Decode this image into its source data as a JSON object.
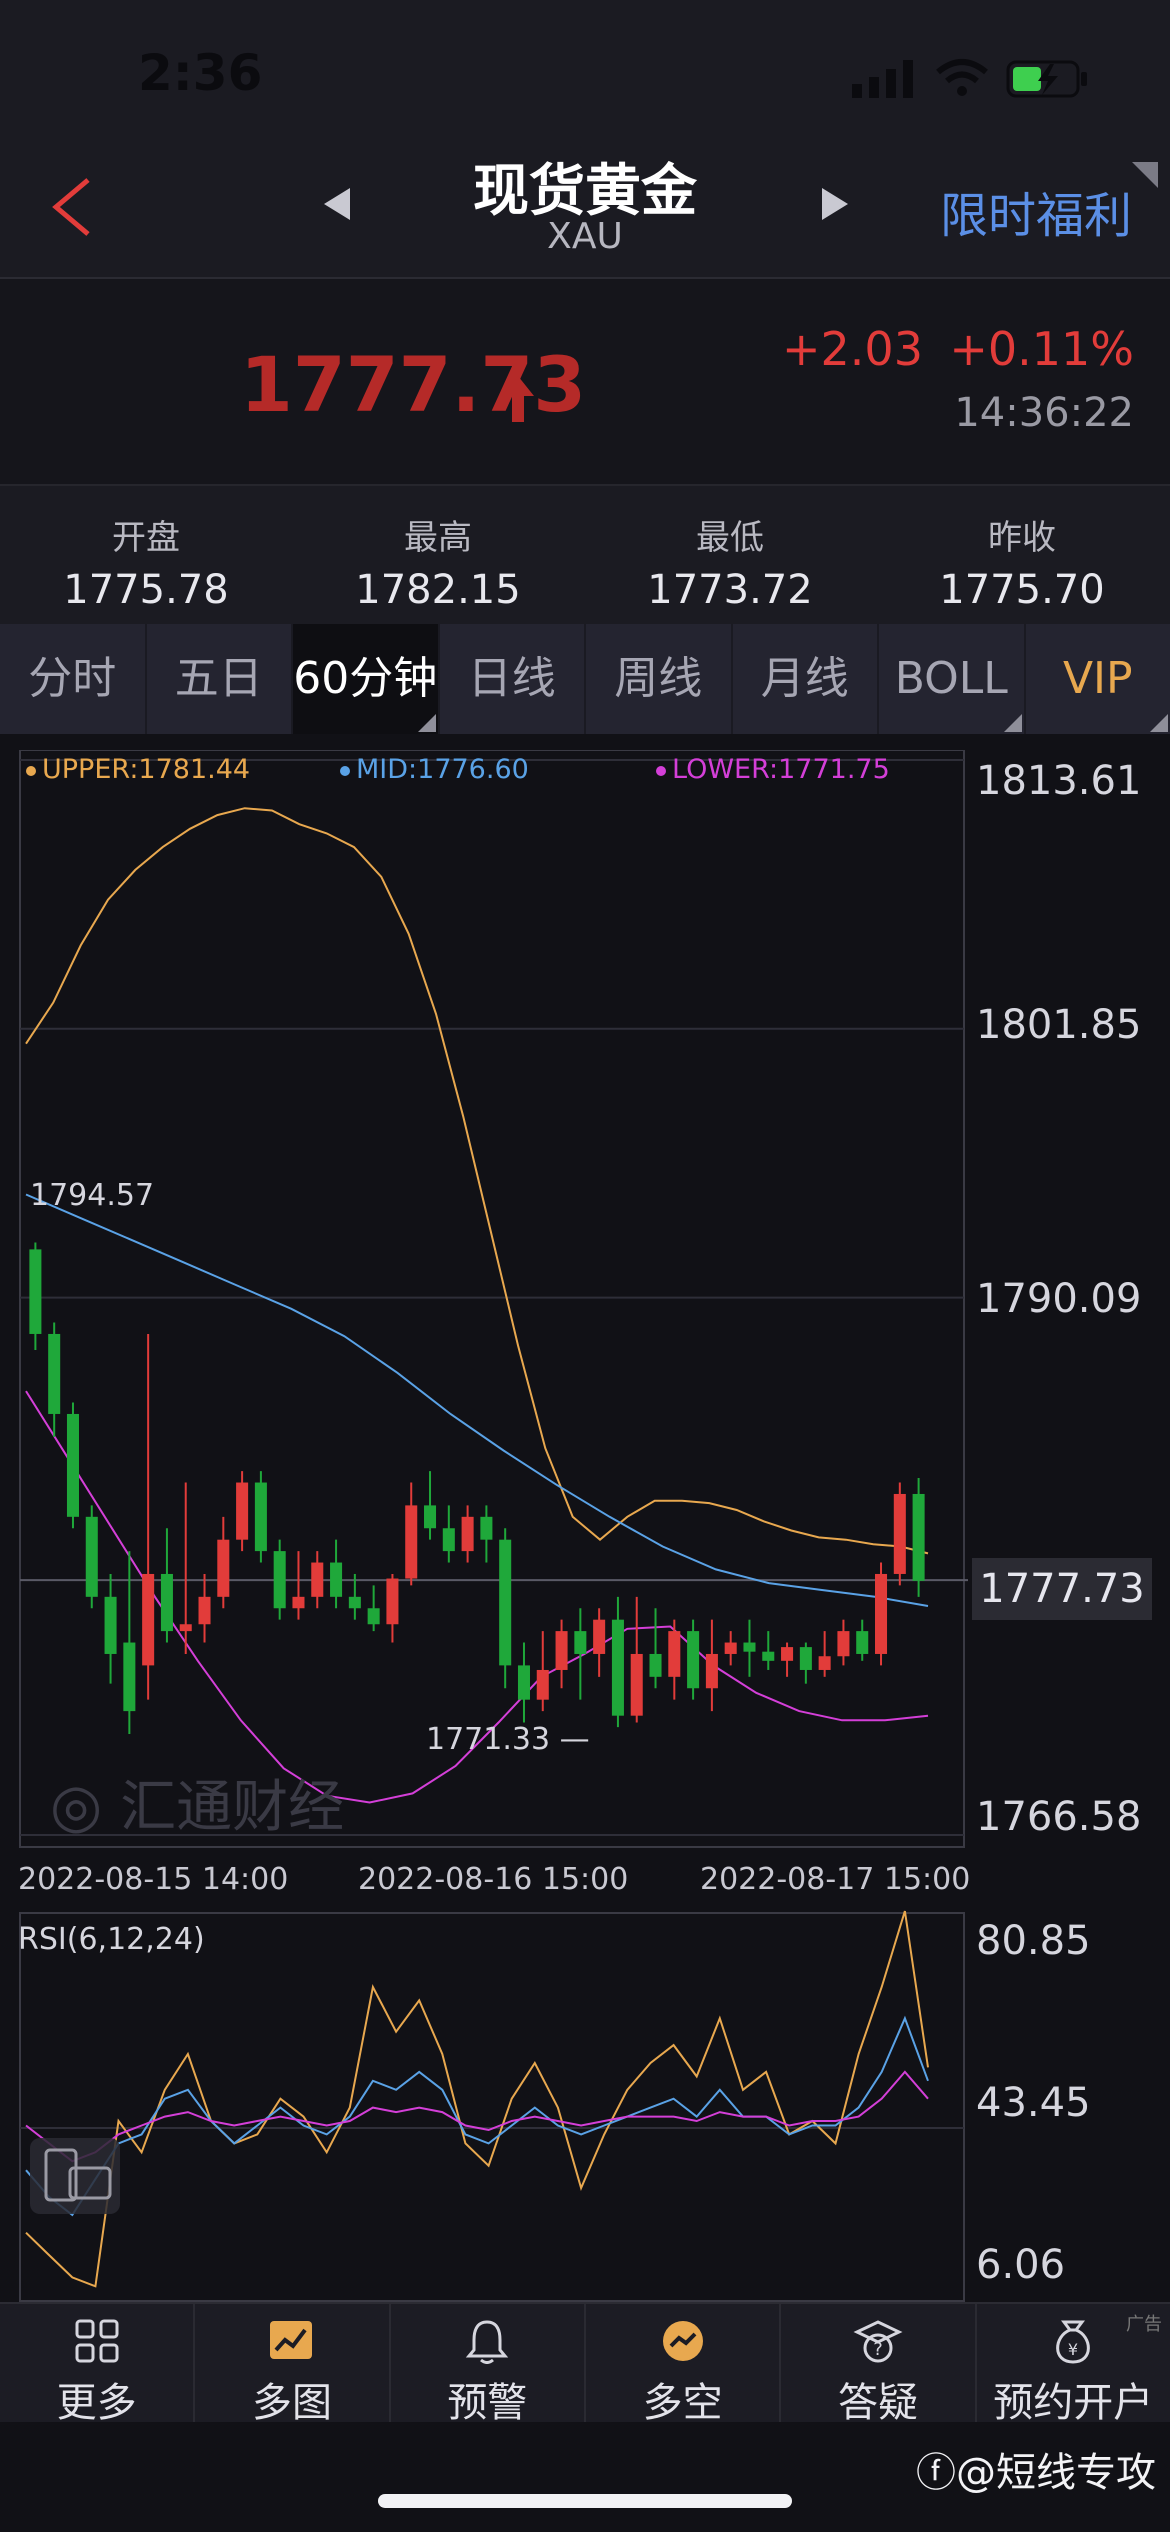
{
  "status": {
    "time": "2:36"
  },
  "header": {
    "back_icon": "back-arrow-icon",
    "title": "现货黄金",
    "subtitle": "XAU",
    "promo": "限时福利"
  },
  "quote": {
    "price": "1777.73",
    "change": "+2.03",
    "change_pct": "+0.11%",
    "time": "14:36:22",
    "up_color": "#e23c3a"
  },
  "stats": [
    {
      "label": "开盘",
      "value": "1775.78"
    },
    {
      "label": "最高",
      "value": "1782.15"
    },
    {
      "label": "最低",
      "value": "1773.72"
    },
    {
      "label": "昨收",
      "value": "1775.70"
    }
  ],
  "tabs": [
    "分时",
    "五日",
    "60分钟",
    "日线",
    "周线",
    "月线",
    "BOLL",
    "VIP"
  ],
  "active_tab": "60分钟",
  "chart_data": {
    "type": "candlestick",
    "legend": {
      "upper": "UPPER:1781.44",
      "mid": "MID:1776.60",
      "lower": "LOWER:1771.75"
    },
    "y_ticks": [
      "1813.61",
      "1801.85",
      "1790.09",
      "1766.58"
    ],
    "ylim": [
      1766.58,
      1813.61
    ],
    "current_price": "1777.73",
    "x_labels": [
      "2022-08-15 14:00",
      "2022-08-16 15:00",
      "2022-08-17 15:00"
    ],
    "annotations": {
      "high": "1794.57",
      "low": "1771.33"
    },
    "colors": {
      "up": "#e23c3a",
      "down": "#1fa83a",
      "upper": "#e8a84f",
      "mid": "#5aa2e6",
      "lower": "#d43fd8"
    },
    "candles": [
      [
        1792.2,
        1788.5,
        1792.5,
        1787.8
      ],
      [
        1788.5,
        1785.0,
        1789.0,
        1784.0
      ],
      [
        1785.0,
        1780.5,
        1785.5,
        1780.0
      ],
      [
        1780.5,
        1777.0,
        1781.0,
        1776.5
      ],
      [
        1777.0,
        1774.5,
        1778.0,
        1773.2
      ],
      [
        1775.0,
        1772.0,
        1779.0,
        1771.0
      ],
      [
        1774.0,
        1778.0,
        1788.5,
        1772.5
      ],
      [
        1778.0,
        1775.5,
        1780.0,
        1775.0
      ],
      [
        1775.5,
        1775.8,
        1782.0,
        1774.5
      ],
      [
        1775.8,
        1777.0,
        1778.0,
        1775.0
      ],
      [
        1777.0,
        1779.5,
        1780.5,
        1776.5
      ],
      [
        1779.5,
        1782.0,
        1782.5,
        1779.0
      ],
      [
        1782.0,
        1779.0,
        1782.5,
        1778.5
      ],
      [
        1779.0,
        1776.5,
        1779.5,
        1776.0
      ],
      [
        1776.5,
        1777.0,
        1779.0,
        1776.0
      ],
      [
        1777.0,
        1778.5,
        1779.0,
        1776.5
      ],
      [
        1778.5,
        1777.0,
        1779.5,
        1776.5
      ],
      [
        1777.0,
        1776.5,
        1778.0,
        1776.0
      ],
      [
        1776.5,
        1775.8,
        1777.5,
        1775.5
      ],
      [
        1775.8,
        1777.8,
        1778.0,
        1775.0
      ],
      [
        1777.8,
        1781.0,
        1782.0,
        1777.5
      ],
      [
        1781.0,
        1780.0,
        1782.5,
        1779.5
      ],
      [
        1780.0,
        1779.0,
        1781.0,
        1778.5
      ],
      [
        1779.0,
        1780.5,
        1781.0,
        1778.5
      ],
      [
        1780.5,
        1779.5,
        1781.0,
        1778.5
      ],
      [
        1779.5,
        1774.0,
        1780.0,
        1773.0
      ],
      [
        1774.0,
        1772.5,
        1775.0,
        1771.5
      ],
      [
        1772.5,
        1773.8,
        1775.5,
        1772.0
      ],
      [
        1773.8,
        1775.5,
        1776.0,
        1773.0
      ],
      [
        1775.5,
        1774.5,
        1776.5,
        1772.5
      ],
      [
        1774.5,
        1776.0,
        1776.5,
        1773.5
      ],
      [
        1776.0,
        1771.8,
        1777.0,
        1771.3
      ],
      [
        1771.8,
        1774.5,
        1777.0,
        1771.5
      ],
      [
        1774.5,
        1773.5,
        1776.5,
        1773.0
      ],
      [
        1773.5,
        1775.5,
        1776.0,
        1772.5
      ],
      [
        1775.5,
        1773.0,
        1776.0,
        1772.5
      ],
      [
        1773.0,
        1774.5,
        1776.0,
        1772.0
      ],
      [
        1774.5,
        1775.0,
        1775.5,
        1774.0
      ],
      [
        1775.0,
        1774.6,
        1776.0,
        1773.5
      ],
      [
        1774.6,
        1774.2,
        1775.5,
        1773.8
      ],
      [
        1774.2,
        1774.8,
        1775.0,
        1773.5
      ],
      [
        1774.8,
        1773.8,
        1775.0,
        1773.2
      ],
      [
        1773.8,
        1774.4,
        1775.5,
        1773.5
      ],
      [
        1774.4,
        1775.5,
        1776.0,
        1774.0
      ],
      [
        1775.5,
        1774.5,
        1776.0,
        1774.2
      ],
      [
        1774.5,
        1778.0,
        1778.5,
        1774.0
      ],
      [
        1778.0,
        1781.5,
        1782.0,
        1777.5
      ],
      [
        1781.5,
        1777.7,
        1782.2,
        1777.0
      ]
    ],
    "upper_band": [
      1801.2,
      1803.0,
      1805.5,
      1807.5,
      1808.8,
      1809.8,
      1810.6,
      1811.2,
      1811.5,
      1811.4,
      1810.8,
      1810.4,
      1809.8,
      1808.5,
      1806.0,
      1802.5,
      1798.0,
      1793.0,
      1788.0,
      1783.5,
      1780.5,
      1779.5,
      1780.5,
      1781.2,
      1781.2,
      1781.1,
      1780.8,
      1780.3,
      1779.9,
      1779.6,
      1779.5,
      1779.3,
      1779.2,
      1778.9
    ],
    "mid_band": [
      1794.6,
      1793.6,
      1792.6,
      1791.6,
      1790.6,
      1789.6,
      1788.4,
      1786.8,
      1785.0,
      1783.4,
      1781.9,
      1780.5,
      1779.2,
      1778.2,
      1777.6,
      1777.3,
      1777.0,
      1776.6
    ],
    "lower_band": [
      1786.0,
      1783.0,
      1780.0,
      1777.0,
      1774.2,
      1771.6,
      1769.5,
      1768.3,
      1768.0,
      1768.4,
      1769.6,
      1771.5,
      1773.5,
      1774.5,
      1775.6,
      1775.7,
      1774.0,
      1772.8,
      1772.0,
      1771.6,
      1771.6,
      1771.8
    ],
    "rsi": {
      "label": "RSI(6,12,24)",
      "y_ticks": [
        "80.85",
        "43.45",
        "6.06"
      ],
      "ylim": [
        6.06,
        90
      ],
      "rsi6": [
        20,
        15,
        10,
        8,
        45,
        38,
        52,
        60,
        45,
        40,
        42,
        50,
        46,
        38,
        48,
        75,
        65,
        72,
        60,
        40,
        35,
        50,
        58,
        48,
        30,
        42,
        52,
        58,
        62,
        55,
        68,
        52,
        56,
        42,
        45,
        40,
        60,
        75,
        92,
        57
      ],
      "rsi12": [
        34,
        28,
        24,
        32,
        40,
        42,
        50,
        52,
        45,
        40,
        44,
        48,
        44,
        42,
        46,
        54,
        52,
        56,
        52,
        42,
        40,
        44,
        48,
        44,
        42,
        44,
        46,
        48,
        50,
        46,
        52,
        46,
        46,
        42,
        44,
        44,
        48,
        56,
        68,
        54
      ],
      "rsi24": [
        44,
        40,
        36,
        38,
        42,
        44,
        46,
        47,
        45,
        44,
        45,
        46,
        45,
        44,
        45,
        48,
        47,
        48,
        47,
        44,
        43,
        45,
        46,
        45,
        44,
        45,
        46,
        46,
        46,
        45,
        47,
        46,
        46,
        44,
        45,
        45,
        46,
        50,
        56,
        50
      ]
    }
  },
  "watermark": "汇通财经",
  "nav": [
    {
      "label": "更多",
      "icon": "grid-icon"
    },
    {
      "label": "多图",
      "icon": "multi-chart-icon"
    },
    {
      "label": "预警",
      "icon": "bell-icon"
    },
    {
      "label": "多空",
      "icon": "long-short-icon"
    },
    {
      "label": "答疑",
      "icon": "question-hat-icon"
    },
    {
      "label": "预约开户",
      "icon": "money-bag-icon"
    }
  ],
  "nav_ad": "广告",
  "footer_watermark": "@短线专攻"
}
